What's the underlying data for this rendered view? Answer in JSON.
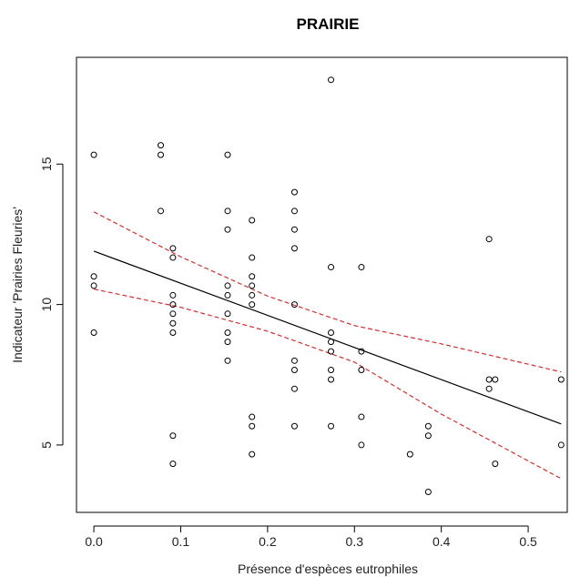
{
  "chart_data": {
    "type": "scatter",
    "title": "PRAIRIE",
    "xlabel": "Présence d'espèces eutrophiles",
    "ylabel": "Indicateur 'Prairies Fleuries'",
    "xlim": [
      -0.02,
      0.545
    ],
    "ylim": [
      2.6,
      18.8
    ],
    "xticks": [
      {
        "value": 0.0,
        "label": "0.0"
      },
      {
        "value": 0.1,
        "label": "0.1"
      },
      {
        "value": 0.2,
        "label": "0.2"
      },
      {
        "value": 0.3,
        "label": "0.3"
      },
      {
        "value": 0.4,
        "label": "0.4"
      },
      {
        "value": 0.5,
        "label": "0.5"
      }
    ],
    "yticks": [
      {
        "value": 5,
        "label": "5"
      },
      {
        "value": 10,
        "label": "10"
      },
      {
        "value": 15,
        "label": "15"
      }
    ],
    "grid": false,
    "points": [
      {
        "x": 0.0,
        "y": 15.33
      },
      {
        "x": 0.0,
        "y": 11.0
      },
      {
        "x": 0.0,
        "y": 10.67
      },
      {
        "x": 0.0,
        "y": 9.0
      },
      {
        "x": 0.077,
        "y": 15.67
      },
      {
        "x": 0.077,
        "y": 15.33
      },
      {
        "x": 0.077,
        "y": 13.33
      },
      {
        "x": 0.091,
        "y": 12.0
      },
      {
        "x": 0.091,
        "y": 11.67
      },
      {
        "x": 0.091,
        "y": 10.33
      },
      {
        "x": 0.091,
        "y": 10.0
      },
      {
        "x": 0.091,
        "y": 9.67
      },
      {
        "x": 0.091,
        "y": 9.33
      },
      {
        "x": 0.091,
        "y": 9.0
      },
      {
        "x": 0.091,
        "y": 5.33
      },
      {
        "x": 0.091,
        "y": 4.33
      },
      {
        "x": 0.154,
        "y": 15.33
      },
      {
        "x": 0.154,
        "y": 13.33
      },
      {
        "x": 0.154,
        "y": 12.67
      },
      {
        "x": 0.154,
        "y": 10.67
      },
      {
        "x": 0.154,
        "y": 10.33
      },
      {
        "x": 0.154,
        "y": 9.67
      },
      {
        "x": 0.154,
        "y": 9.0
      },
      {
        "x": 0.154,
        "y": 8.67
      },
      {
        "x": 0.154,
        "y": 8.0
      },
      {
        "x": 0.182,
        "y": 13.0
      },
      {
        "x": 0.182,
        "y": 11.67
      },
      {
        "x": 0.182,
        "y": 11.0
      },
      {
        "x": 0.182,
        "y": 10.67
      },
      {
        "x": 0.182,
        "y": 10.33
      },
      {
        "x": 0.182,
        "y": 10.0
      },
      {
        "x": 0.182,
        "y": 6.0
      },
      {
        "x": 0.182,
        "y": 5.67
      },
      {
        "x": 0.182,
        "y": 4.67
      },
      {
        "x": 0.231,
        "y": 14.0
      },
      {
        "x": 0.231,
        "y": 13.33
      },
      {
        "x": 0.231,
        "y": 12.67
      },
      {
        "x": 0.231,
        "y": 12.0
      },
      {
        "x": 0.231,
        "y": 10.0
      },
      {
        "x": 0.231,
        "y": 8.0
      },
      {
        "x": 0.231,
        "y": 7.67
      },
      {
        "x": 0.231,
        "y": 7.0
      },
      {
        "x": 0.231,
        "y": 5.67
      },
      {
        "x": 0.273,
        "y": 18.0
      },
      {
        "x": 0.273,
        "y": 11.33
      },
      {
        "x": 0.273,
        "y": 9.0
      },
      {
        "x": 0.273,
        "y": 8.67
      },
      {
        "x": 0.273,
        "y": 8.33
      },
      {
        "x": 0.273,
        "y": 7.67
      },
      {
        "x": 0.273,
        "y": 7.33
      },
      {
        "x": 0.273,
        "y": 5.67
      },
      {
        "x": 0.308,
        "y": 11.33
      },
      {
        "x": 0.308,
        "y": 8.33
      },
      {
        "x": 0.308,
        "y": 7.67
      },
      {
        "x": 0.308,
        "y": 6.0
      },
      {
        "x": 0.308,
        "y": 5.0
      },
      {
        "x": 0.364,
        "y": 4.67
      },
      {
        "x": 0.385,
        "y": 5.67
      },
      {
        "x": 0.385,
        "y": 5.33
      },
      {
        "x": 0.385,
        "y": 3.33
      },
      {
        "x": 0.455,
        "y": 12.33
      },
      {
        "x": 0.455,
        "y": 7.33
      },
      {
        "x": 0.455,
        "y": 7.0
      },
      {
        "x": 0.462,
        "y": 7.33
      },
      {
        "x": 0.462,
        "y": 4.33
      },
      {
        "x": 0.538,
        "y": 7.33
      },
      {
        "x": 0.538,
        "y": 5.0
      }
    ],
    "regression_line": {
      "x": [
        0.0,
        0.538
      ],
      "y": [
        11.9,
        5.75
      ],
      "color": "#000000"
    },
    "confidence_band": {
      "color": "#d03030",
      "upper": {
        "x": [
          0.0,
          0.1,
          0.2,
          0.3,
          0.4,
          0.538
        ],
        "y": [
          13.3,
          11.7,
          10.3,
          9.25,
          8.6,
          7.6
        ]
      },
      "lower": {
        "x": [
          0.0,
          0.1,
          0.2,
          0.3,
          0.4,
          0.538
        ],
        "y": [
          10.55,
          9.9,
          9.05,
          7.95,
          6.1,
          3.8
        ]
      }
    }
  }
}
